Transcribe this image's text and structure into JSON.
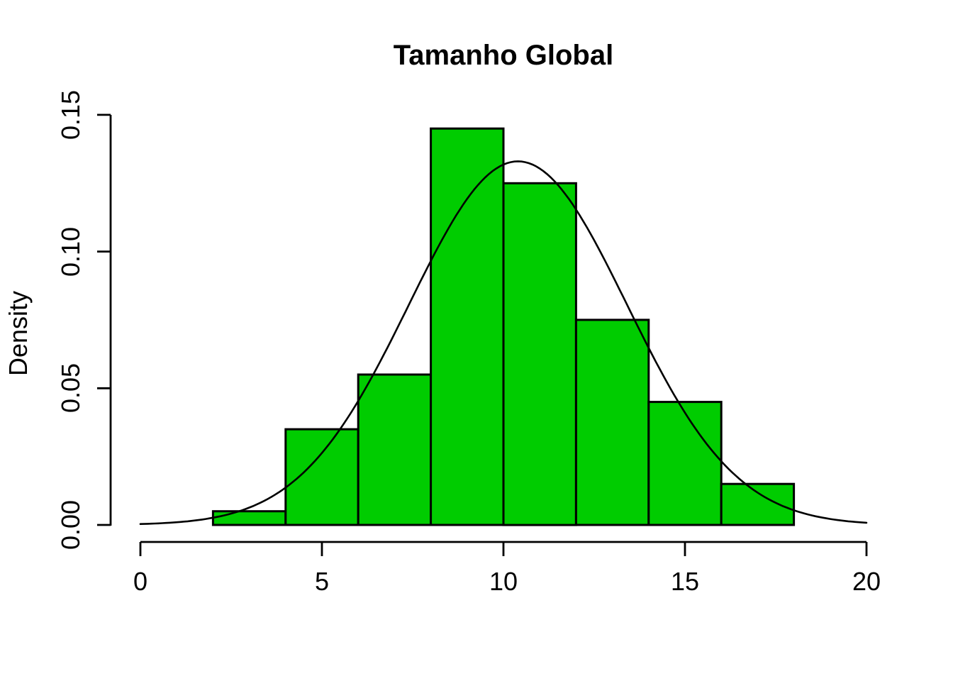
{
  "chart_data": {
    "type": "bar",
    "subtype": "histogram-with-density-curve",
    "title": "Tamanho Global",
    "xlabel": "",
    "ylabel": "Density",
    "xlim": [
      0,
      20
    ],
    "ylim": [
      0,
      0.15
    ],
    "x_tick_labels": [
      "0",
      "5",
      "10",
      "15",
      "20"
    ],
    "x_tick_values": [
      0,
      5,
      10,
      15,
      20
    ],
    "y_tick_labels": [
      "0.00",
      "0.05",
      "0.10",
      "0.15"
    ],
    "y_tick_values": [
      0.0,
      0.05,
      0.1,
      0.15
    ],
    "grid": false,
    "legend": "none",
    "bins": {
      "edges": [
        2,
        4,
        6,
        8,
        10,
        12,
        14,
        16,
        18
      ],
      "densities": [
        0.005,
        0.035,
        0.055,
        0.145,
        0.125,
        0.075,
        0.045,
        0.015
      ]
    },
    "curve": {
      "shape": "normal",
      "mean": 10.4,
      "sd": 3.0,
      "peak_density": 0.133,
      "x_start": 0,
      "x_end": 20
    },
    "colors": {
      "bar_fill": "#00CC00",
      "bar_stroke": "#000000",
      "curve": "#000000",
      "axis": "#000000",
      "text": "#000000",
      "background": "#FFFFFF"
    }
  }
}
